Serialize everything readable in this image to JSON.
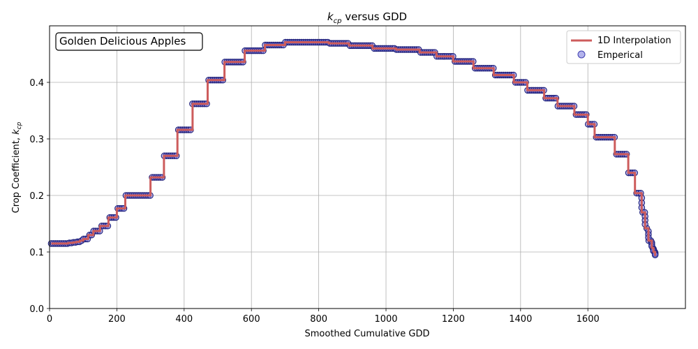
{
  "chart_data": {
    "type": "line",
    "title_main": "k",
    "title_sub": "cp",
    "title_rest": " versus GDD",
    "xlabel": "Smoothed Cumulative GDD",
    "ylabel_main": "Crop Coefficient, ",
    "ylabel_k": "k",
    "ylabel_sub": "cp",
    "annotation": "Golden Delicious Apples",
    "xlim": [
      0,
      1890
    ],
    "ylim": [
      0,
      0.5
    ],
    "xticks": [
      0,
      200,
      400,
      600,
      800,
      1000,
      1200,
      1400,
      1600
    ],
    "yticks": [
      0.0,
      0.1,
      0.2,
      0.3,
      0.4
    ],
    "ytick_labels": [
      "0.0",
      "0.1",
      "0.2",
      "0.3",
      "0.4"
    ],
    "grid": true,
    "legend_position": "top-right",
    "colors": {
      "line": "#cd5c5c",
      "marker_fill": "#8080e0",
      "marker_edge": "#00008b"
    },
    "series": [
      {
        "name": "1D Interpolation",
        "kind": "step-line",
        "x": [
          5,
          20,
          40,
          55,
          70,
          80,
          90,
          100,
          115,
          130,
          150,
          175,
          200,
          225,
          260,
          300,
          340,
          380,
          425,
          470,
          520,
          580,
          640,
          700,
          780,
          830,
          890,
          960,
          1030,
          1100,
          1150,
          1200,
          1260,
          1320,
          1380,
          1420,
          1470,
          1510,
          1560,
          1600,
          1620,
          1650,
          1680,
          1700,
          1720,
          1740,
          1760,
          1770,
          1780,
          1790,
          1795,
          1800
        ],
        "y": [
          0.115,
          0.115,
          0.115,
          0.116,
          0.117,
          0.118,
          0.12,
          0.123,
          0.13,
          0.137,
          0.146,
          0.161,
          0.177,
          0.2,
          0.2,
          0.232,
          0.27,
          0.316,
          0.362,
          0.404,
          0.436,
          0.456,
          0.466,
          0.471,
          0.471,
          0.469,
          0.465,
          0.46,
          0.458,
          0.453,
          0.446,
          0.437,
          0.425,
          0.413,
          0.4,
          0.386,
          0.372,
          0.358,
          0.343,
          0.326,
          0.303,
          0.303,
          0.273,
          0.273,
          0.24,
          0.204,
          0.17,
          0.142,
          0.12,
          0.107,
          0.1,
          0.093
        ]
      },
      {
        "name": "Emperical",
        "kind": "scatter",
        "note": "dense markers along the stepped curve"
      }
    ]
  }
}
